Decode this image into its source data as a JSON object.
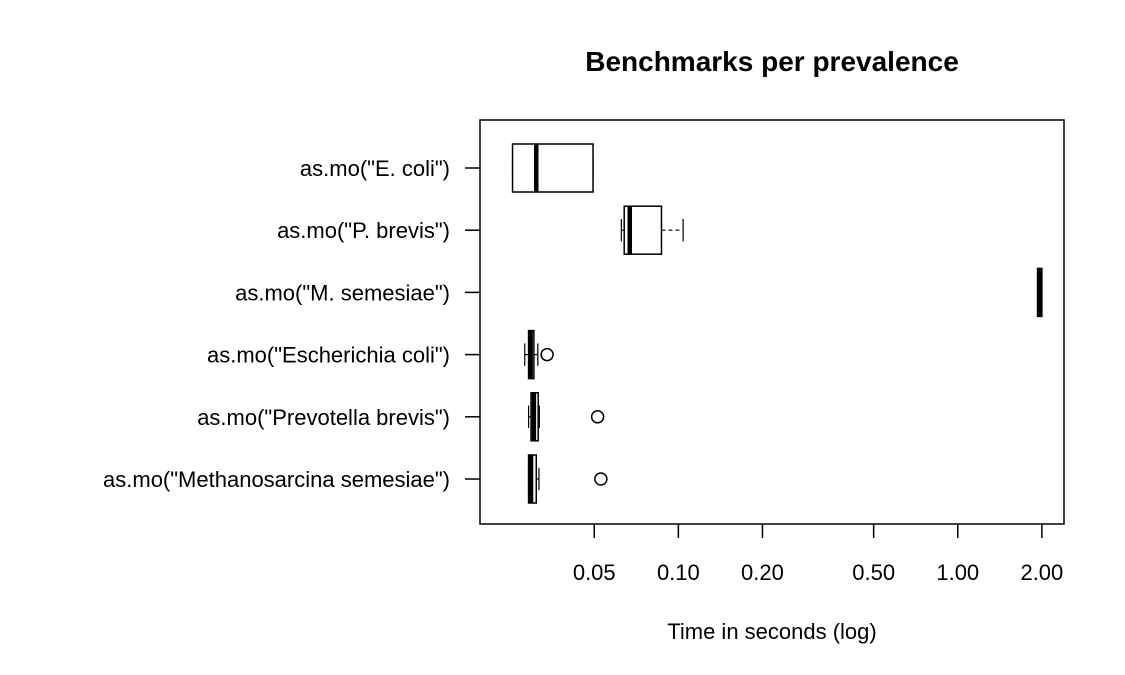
{
  "chart_data": {
    "type": "boxplot",
    "orientation": "horizontal",
    "title": "Benchmarks per prevalence",
    "xlabel": "Time in seconds (log)",
    "ylabel": "",
    "x_scale": "log",
    "xlim": [
      0.0195,
      2.4
    ],
    "x_ticks": [
      {
        "value": 0.05,
        "label": "0.05"
      },
      {
        "value": 0.1,
        "label": "0.10"
      },
      {
        "value": 0.2,
        "label": "0.20"
      },
      {
        "value": 0.5,
        "label": "0.50"
      },
      {
        "value": 1.0,
        "label": "1.00"
      },
      {
        "value": 2.0,
        "label": "2.00"
      }
    ],
    "grid": false,
    "boxes": [
      {
        "label": "as.mo(\"E. coli\")",
        "whisker_low": 0.0255,
        "q1": 0.0255,
        "median": 0.031,
        "q3": 0.0495,
        "whisker_high": 0.0495,
        "outliers": []
      },
      {
        "label": "as.mo(\"P. brevis\")",
        "whisker_low": 0.0625,
        "q1": 0.064,
        "median": 0.067,
        "q3": 0.087,
        "whisker_high": 0.104,
        "outliers": []
      },
      {
        "label": "as.mo(\"M. semesiae\")",
        "whisker_low": 1.93,
        "q1": 1.93,
        "median": 1.96,
        "q3": 2.0,
        "whisker_high": 2.0,
        "outliers": []
      },
      {
        "label": "as.mo(\"Escherichia coli\")",
        "whisker_low": 0.0282,
        "q1": 0.0291,
        "median": 0.0296,
        "q3": 0.0304,
        "whisker_high": 0.0314,
        "outliers": [
          0.0339
        ]
      },
      {
        "label": "as.mo(\"Prevotella brevis\")",
        "whisker_low": 0.0291,
        "q1": 0.0297,
        "median": 0.0304,
        "q3": 0.0315,
        "whisker_high": 0.0318,
        "outliers": [
          0.0514
        ]
      },
      {
        "label": "as.mo(\"Methanosarcina semesiae\")",
        "whisker_low": 0.0291,
        "q1": 0.0291,
        "median": 0.0297,
        "q3": 0.031,
        "whisker_high": 0.0317,
        "outliers": [
          0.0528
        ]
      }
    ]
  }
}
